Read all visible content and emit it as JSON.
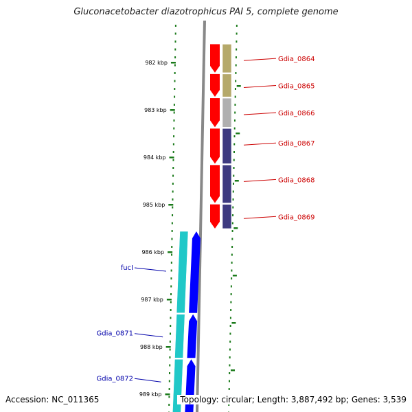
{
  "title": "Gluconacetobacter diazotrophicus PAI 5, complete genome",
  "footer": {
    "accession": "Accession: NC_011365",
    "summary": "Topology: circular; Length: 3,887,492 bp; Genes: 3,539"
  },
  "axis": {
    "unit": "kbp",
    "ticks": [
      {
        "label": "982 kbp",
        "value": 982
      },
      {
        "label": "983 kbp",
        "value": 983
      },
      {
        "label": "984 kbp",
        "value": 984
      },
      {
        "label": "985 kbp",
        "value": 985
      },
      {
        "label": "986 kbp",
        "value": 986
      },
      {
        "label": "987 kbp",
        "value": 987
      },
      {
        "label": "988 kbp",
        "value": 988
      },
      {
        "label": "989 kbp",
        "value": 989
      }
    ]
  },
  "colors": {
    "forward_cds": "#ff0000",
    "reverse_cds": "#0000ff",
    "gene_olive": "#b5a96a",
    "gene_gray": "#b0b0b0",
    "gene_navy": "#3d3a80",
    "gene_cyan": "#20c8c8",
    "label_forward": "#cc0000",
    "label_reverse": "#0000aa",
    "tick_green": "#1a7a1a",
    "backbone": "#888888"
  },
  "genes_forward": [
    {
      "label": "Gdia_0864",
      "start": 981.6,
      "end": 982.23,
      "color": "#b5a96a"
    },
    {
      "label": "Gdia_0865",
      "start": 982.23,
      "end": 982.74,
      "color": "#b5a96a"
    },
    {
      "label": "Gdia_0866",
      "start": 982.74,
      "end": 983.38,
      "color": "#b0b0b0"
    },
    {
      "label": "Gdia_0867",
      "start": 983.38,
      "end": 984.15,
      "color": "#3d3a80"
    },
    {
      "label": "Gdia_0868",
      "start": 984.15,
      "end": 984.98,
      "color": "#3d3a80"
    },
    {
      "label": "Gdia_0869",
      "start": 984.98,
      "end": 985.52,
      "color": "#3d3a80"
    }
  ],
  "genes_reverse": [
    {
      "label": "fucI",
      "start": 985.55,
      "end": 987.3,
      "color": "#20c8c8"
    },
    {
      "label": "Gdia_0871",
      "start": 987.3,
      "end": 988.25,
      "color": "#20c8c8"
    },
    {
      "label": "Gdia_0872",
      "start": 988.25,
      "end": 989.45,
      "color": "#20c8c8"
    }
  ]
}
